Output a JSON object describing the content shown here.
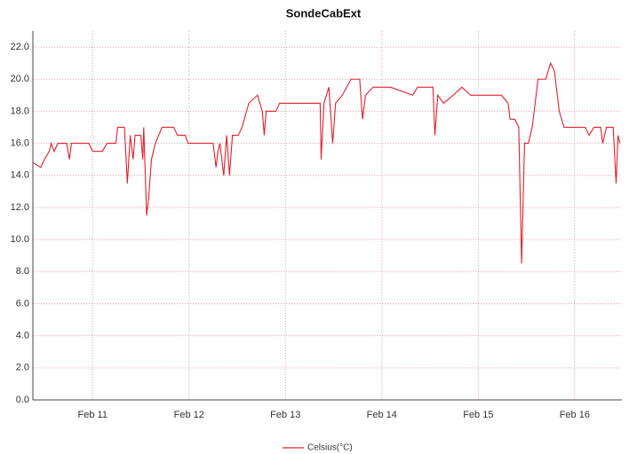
{
  "chart_data": {
    "type": "line",
    "title": "SondeCabExt",
    "x": [
      10.38,
      10.46,
      10.5,
      10.55,
      10.57,
      10.6,
      10.64,
      10.73,
      10.76,
      10.78,
      10.96,
      11.0,
      11.1,
      11.15,
      11.24,
      11.26,
      11.33,
      11.36,
      11.39,
      11.42,
      11.44,
      11.5,
      11.52,
      11.53,
      11.56,
      11.58,
      11.61,
      11.65,
      11.72,
      11.84,
      11.88,
      11.96,
      11.99,
      12.16,
      12.25,
      12.28,
      12.3,
      12.32,
      12.36,
      12.39,
      12.42,
      12.45,
      12.51,
      12.55,
      12.62,
      12.71,
      12.76,
      12.78,
      12.8,
      12.9,
      12.94,
      13.08,
      13.17,
      13.26,
      13.36,
      13.37,
      13.4,
      13.45,
      13.49,
      13.52,
      13.59,
      13.68,
      13.77,
      13.8,
      13.83,
      13.91,
      14.09,
      14.32,
      14.37,
      14.53,
      14.55,
      14.58,
      14.64,
      14.74,
      14.83,
      14.92,
      15.06,
      15.15,
      15.24,
      15.31,
      15.33,
      15.38,
      15.42,
      15.45,
      15.48,
      15.52,
      15.56,
      15.62,
      15.7,
      15.75,
      15.79,
      15.84,
      15.89,
      15.97,
      16.11,
      16.15,
      16.2,
      16.27,
      16.29,
      16.33,
      16.4,
      16.43,
      16.45,
      16.47
    ],
    "series": [
      {
        "name": "Celsius(°C)",
        "color": "#e0202a",
        "values": [
          14.8,
          14.5,
          15,
          15.5,
          16,
          15.5,
          16,
          16,
          15,
          16,
          16,
          15.5,
          15.5,
          16,
          16,
          17,
          17,
          13.5,
          16.5,
          15,
          16.5,
          16.5,
          15,
          17,
          11.5,
          12.5,
          15,
          16,
          17,
          17,
          16.5,
          16.5,
          16,
          16,
          16,
          14.5,
          15.5,
          16,
          14,
          16.5,
          14,
          16.5,
          16.5,
          17,
          18.5,
          19,
          18,
          16.5,
          18,
          18,
          18.5,
          18.5,
          18.5,
          18.5,
          18.5,
          15,
          18.5,
          19.5,
          16,
          18.5,
          19,
          20,
          20,
          17.5,
          19,
          19.5,
          19.5,
          19,
          19.5,
          19.5,
          16.5,
          19,
          18.5,
          19,
          19.5,
          19,
          19,
          19,
          19,
          18.5,
          17.5,
          17.5,
          17,
          8.5,
          16,
          16,
          17,
          20,
          20,
          21,
          20.5,
          18,
          17,
          17,
          17,
          16.5,
          17,
          17,
          16,
          17,
          17,
          13.5,
          16.5,
          16
        ]
      }
    ],
    "xlim": [
      10.38,
      16.49
    ],
    "xticks": [
      {
        "value": 11,
        "label": "Feb 11"
      },
      {
        "value": 12,
        "label": "Feb 12"
      },
      {
        "value": 13,
        "label": "Feb 13"
      },
      {
        "value": 14,
        "label": "Feb 14"
      },
      {
        "value": 15,
        "label": "Feb 15"
      },
      {
        "value": 16,
        "label": "Feb 16"
      }
    ],
    "ylim": [
      0,
      23
    ],
    "yticks": [
      {
        "value": 0,
        "label": "0.0"
      },
      {
        "value": 2,
        "label": "2.0"
      },
      {
        "value": 4,
        "label": "4.0"
      },
      {
        "value": 6,
        "label": "6.0"
      },
      {
        "value": 8,
        "label": "8.0"
      },
      {
        "value": 10,
        "label": "10.0"
      },
      {
        "value": 12,
        "label": "12.0"
      },
      {
        "value": 14,
        "label": "14.0"
      },
      {
        "value": 16,
        "label": "16.0"
      },
      {
        "value": 18,
        "label": "18.0"
      },
      {
        "value": 20,
        "label": "20.0"
      },
      {
        "value": 22,
        "label": "22.0"
      }
    ],
    "grid": true
  }
}
